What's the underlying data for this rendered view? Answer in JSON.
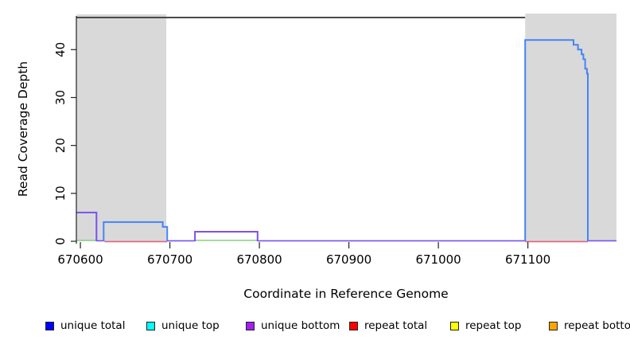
{
  "chart_data": {
    "type": "area",
    "title": "",
    "xlabel": "Coordinate in Reference Genome",
    "ylabel": "Read Coverage Depth",
    "xlim": [
      670595.5,
      671199
    ],
    "ylim": [
      0,
      47
    ],
    "x_ticks": [
      670600,
      670700,
      670800,
      670900,
      671000,
      671100
    ],
    "y_ticks": [
      0,
      10,
      20,
      30,
      40
    ],
    "grid": false,
    "legend_position": "bottom",
    "shaded_regions": [
      {
        "from": 670596,
        "to": 670696
      },
      {
        "from": 671097,
        "to": 671199
      }
    ],
    "baseline_segments": [
      {
        "from": 670595.5,
        "to": 670618,
        "series": "overlap green"
      },
      {
        "from": 670618,
        "to": 670627,
        "series": "unique bottom"
      },
      {
        "from": 670627,
        "to": 670697,
        "series": "repeat total"
      },
      {
        "from": 670697,
        "to": 670728,
        "series": "unique bottom"
      },
      {
        "from": 670728,
        "to": 670798,
        "series": "overlap green"
      },
      {
        "from": 670798,
        "to": 671097,
        "series": "unique bottom"
      },
      {
        "from": 671097,
        "to": 671167,
        "series": "repeat total"
      },
      {
        "from": 671167,
        "to": 671199,
        "series": "unique bottom"
      }
    ],
    "steps": [
      {
        "series": "unique bottom",
        "points": [
          [
            670595.5,
            6
          ],
          [
            670618,
            6
          ],
          [
            670618,
            0
          ]
        ]
      },
      {
        "series": "unique total",
        "points": [
          [
            670626,
            0
          ],
          [
            670626,
            4
          ],
          [
            670692,
            4
          ],
          [
            670692,
            3
          ],
          [
            670697,
            3
          ],
          [
            670697,
            0
          ]
        ]
      },
      {
        "series": "unique bottom",
        "points": [
          [
            670728,
            0
          ],
          [
            670728,
            2
          ],
          [
            670798,
            2
          ],
          [
            670798,
            0
          ]
        ]
      },
      {
        "series": "unique total",
        "points": [
          [
            671097,
            0
          ],
          [
            671097,
            42
          ],
          [
            671151,
            42
          ],
          [
            671151,
            41
          ],
          [
            671156,
            41
          ],
          [
            671156,
            40
          ],
          [
            671160,
            40
          ],
          [
            671160,
            39
          ],
          [
            671162,
            39
          ],
          [
            671162,
            38
          ],
          [
            671164,
            38
          ],
          [
            671164,
            36
          ],
          [
            671166,
            36
          ],
          [
            671166,
            35
          ],
          [
            671167,
            35
          ],
          [
            671167,
            0
          ]
        ]
      }
    ],
    "plot_colors": {
      "unique total": "#4584f5",
      "unique bottom": "#7b52ef",
      "repeat total": "#e55f82",
      "overlap green": "#8ed48e",
      "shade": "#d9d9d9",
      "box": "#4a4a4a"
    }
  },
  "legend": {
    "items": [
      {
        "label": "unique total",
        "color": "#0000ff"
      },
      {
        "label": "unique top",
        "color": "#00ffff"
      },
      {
        "label": "unique bottom",
        "color": "#a020f0"
      },
      {
        "label": "repeat total",
        "color": "#ff0000"
      },
      {
        "label": "repeat top",
        "color": "#ffff00"
      },
      {
        "label": "repeat bottom",
        "color": "#ffa500"
      }
    ]
  }
}
